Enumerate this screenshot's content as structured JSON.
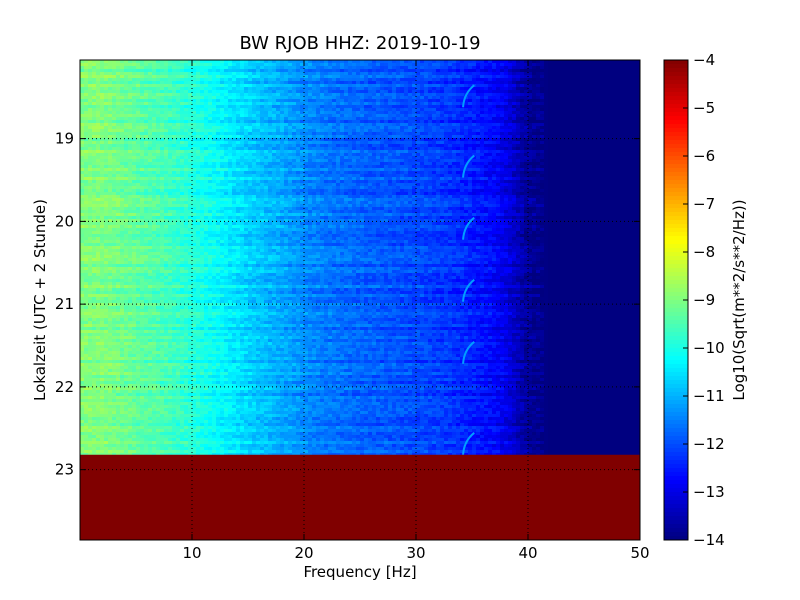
{
  "chart_data": {
    "type": "heatmap",
    "title": "BW RJOB HHZ: 2019-10-19",
    "xlabel": "Frequency [Hz]",
    "ylabel": "Lokalzeit (UTC + 2 Stunde)",
    "colorbar_label": "Log10(Sqrt(m**2/s**2/Hz))",
    "colormap": "jet",
    "xlim": [
      0,
      50
    ],
    "ylim": [
      18.05,
      23.85
    ],
    "y_inverted": true,
    "x_ticks": [
      "10",
      "20",
      "30",
      "40",
      "50"
    ],
    "y_ticks": [
      "19",
      "20",
      "21",
      "22",
      "23"
    ],
    "colorbar_range": [
      -14,
      -4
    ],
    "colorbar_ticks": [
      "-4",
      "-5",
      "-6",
      "-7",
      "-8",
      "-9",
      "-10",
      "-11",
      "-12",
      "-13",
      "-14"
    ],
    "grid": true,
    "data_end_hour": 22.82,
    "no_data_value": -4,
    "frequency_profile": {
      "frequency_hz": [
        0,
        2,
        5,
        8,
        10,
        12,
        15,
        18,
        20,
        22,
        25,
        28,
        30,
        33,
        35,
        37,
        38,
        39,
        40,
        42,
        45,
        50
      ],
      "value": [
        -9.0,
        -9.0,
        -9.3,
        -9.6,
        -9.9,
        -10.2,
        -10.7,
        -11.1,
        -11.4,
        -11.6,
        -11.8,
        -11.95,
        -12.05,
        -12.25,
        -12.5,
        -12.75,
        -13.0,
        -13.4,
        -13.8,
        -14.0,
        -14.0,
        -14.0
      ]
    },
    "line_feature": {
      "frequency_hz_range": [
        34.2,
        35.2
      ],
      "hours": [
        18.5,
        19.35,
        20.1,
        20.85,
        21.6,
        22.7
      ],
      "value": -11.2
    }
  }
}
